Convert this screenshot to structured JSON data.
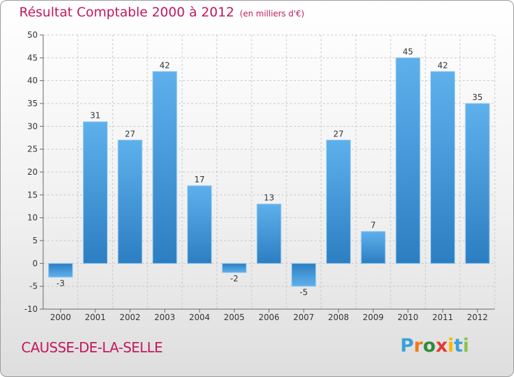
{
  "chart_data": {
    "type": "bar",
    "title": "Résultat Comptable 2000 à 2012",
    "subtitle": "(en milliers d'€)",
    "categories": [
      "2000",
      "2001",
      "2002",
      "2003",
      "2004",
      "2005",
      "2006",
      "2007",
      "2008",
      "2009",
      "2010",
      "2011",
      "2012"
    ],
    "values": [
      -3,
      31,
      27,
      42,
      17,
      -2,
      13,
      -5,
      27,
      7,
      45,
      42,
      35
    ],
    "ylim": [
      -10,
      50
    ],
    "yticks": [
      -10,
      -5,
      0,
      5,
      10,
      15,
      20,
      25,
      30,
      35,
      40,
      45,
      50
    ],
    "xlabel": "",
    "ylabel": "",
    "grid": true,
    "bar_color": "#3d8fd6",
    "title_color": "#c2185b"
  },
  "footer": {
    "town": "CAUSSE-DE-LA-SELLE",
    "brand": "Proxiti",
    "brand_colors": [
      "#3aa0d8",
      "#f07a1a",
      "#2e8b3a",
      "#e53935",
      "#f5b800",
      "#3aa0d8",
      "#8bc34a"
    ]
  }
}
